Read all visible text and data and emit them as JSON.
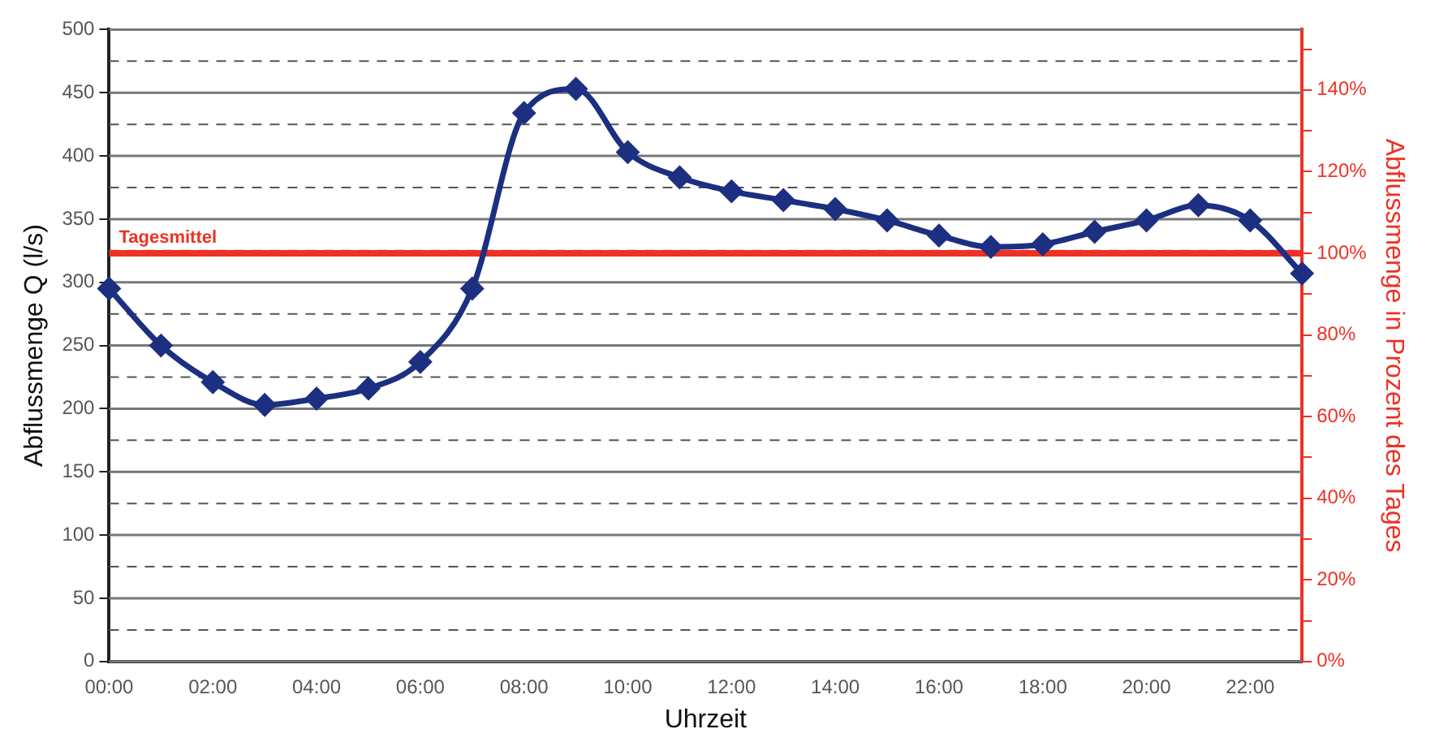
{
  "chart_data": {
    "type": "line",
    "xlabel": "Uhrzeit",
    "ylabel": "Abflussmenge Q (l/s)",
    "y2label": "Abflussmenge in Prozent des Tages",
    "categories": [
      "00:00",
      null,
      "02:00",
      null,
      "04:00",
      null,
      "06:00",
      null,
      "08:00",
      null,
      "10:00",
      null,
      "12:00",
      null,
      "14:00",
      null,
      "16:00",
      null,
      "18:00",
      null,
      "20:00",
      null,
      "22:00",
      null
    ],
    "series": [
      {
        "color": "#1c2f80",
        "values": [
          295,
          250,
          221,
          203,
          208,
          216,
          237,
          295,
          434,
          453,
          403,
          383,
          372,
          365,
          358,
          349,
          337,
          328,
          330,
          340,
          349,
          361,
          349,
          307
        ]
      }
    ],
    "ylim": [
      0,
      500
    ],
    "yticks": [
      0,
      {
        "value": 25,
        "label": null
      },
      50,
      {
        "value": 75,
        "label": null
      },
      100,
      {
        "value": 125,
        "label": null
      },
      150,
      {
        "value": 175,
        "label": null
      },
      200,
      {
        "value": 225,
        "label": null
      },
      250,
      {
        "value": 275,
        "label": null
      },
      300,
      {
        "value": 325,
        "label": null
      },
      350,
      {
        "value": 375,
        "label": null
      },
      400,
      {
        "value": 425,
        "label": null
      },
      450,
      {
        "value": 475,
        "label": null
      },
      500
    ],
    "y2lim": [
      0,
      154.8
    ],
    "y2ticks": [
      {
        "value": 0,
        "label": "0%"
      },
      {
        "value": 10,
        "label": null
      },
      {
        "value": 20,
        "label": "20%"
      },
      {
        "value": 30,
        "label": null
      },
      {
        "value": 40,
        "label": "40%"
      },
      {
        "value": 50,
        "label": null
      },
      {
        "value": 60,
        "label": "60%"
      },
      {
        "value": 70,
        "label": null
      },
      {
        "value": 80,
        "label": "80%"
      },
      {
        "value": 90,
        "label": null
      },
      {
        "value": 100,
        "label": "100%"
      },
      {
        "value": 110,
        "label": null
      },
      {
        "value": 120,
        "label": "120%"
      },
      {
        "value": 130,
        "label": null
      },
      {
        "value": 140,
        "label": "140%"
      },
      {
        "value": 150,
        "label": null
      }
    ],
    "ref_lines": [
      {
        "axis": "y",
        "value": 323,
        "label": "Tagesmittel",
        "color": "#ee3124"
      }
    ],
    "grid": "y",
    "legend": false,
    "marker": "diamond",
    "line_style": "solid"
  }
}
